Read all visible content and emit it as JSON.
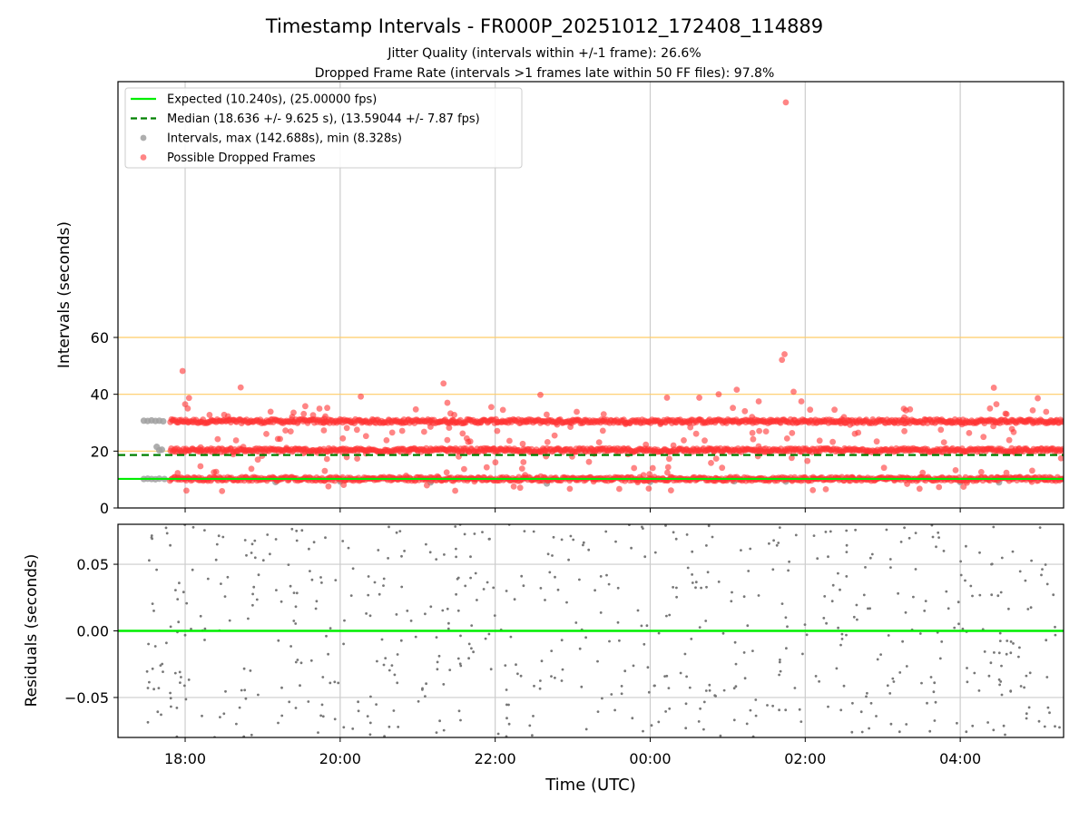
{
  "chart_data": [
    {
      "type": "scatter",
      "title": "Timestamp Intervals - FR000P_20251012_172408_114889",
      "subtitle_lines": [
        "Jitter Quality (intervals within +/-1 frame): 26.6%",
        "Dropped Frame Rate (intervals >1 frames late within 50 FF files): 97.8%"
      ],
      "xlabel": "",
      "ylabel": "Intervals (seconds)",
      "x_range": [
        "17:08",
        "05:20"
      ],
      "ylim": [
        0,
        150
      ],
      "yticks": [
        0,
        20,
        40,
        60
      ],
      "grid": "vertical at x ticks",
      "legend_placement": "top-left",
      "legend": [
        {
          "label": "Expected (10.240s), (25.00000 fps)",
          "style": "solid line",
          "color": "#00ee00"
        },
        {
          "label": "Median (18.636 +/- 9.625 s), (13.59044 +/- 7.87 fps)",
          "style": "dashed line",
          "color": "#008000"
        },
        {
          "label": "Intervals, max (142.688s), min (8.328s)",
          "style": "marker",
          "color": "#a0a0a0"
        },
        {
          "label": "Possible Dropped Frames",
          "style": "marker",
          "color": "#ff3333"
        }
      ],
      "reference_lines": [
        {
          "name": "expected",
          "y": 10.24,
          "color": "#00ee00",
          "style": "solid"
        },
        {
          "name": "median",
          "y": 18.636,
          "color": "#008000",
          "style": "dashed"
        },
        {
          "name": "threshold",
          "y": 20,
          "color": "#ffcc66",
          "style": "solid"
        },
        {
          "name": "threshold",
          "y": 40,
          "color": "#ffcc66",
          "style": "solid"
        },
        {
          "name": "threshold",
          "y": 60,
          "color": "#ffcc66",
          "style": "solid"
        }
      ],
      "series": [
        {
          "kind": "intervals",
          "color": "#a0a0a0",
          "points": [
            [
              "17:28",
              30.7
            ],
            [
              "17:31",
              30.6
            ],
            [
              "17:34",
              30.8
            ],
            [
              "17:37",
              30.6
            ],
            [
              "17:40",
              30.7
            ],
            [
              "17:43",
              30.5
            ],
            [
              "17:28",
              10.2
            ],
            [
              "17:31",
              10.3
            ],
            [
              "17:34",
              10.2
            ],
            [
              "17:37",
              10.1
            ],
            [
              "17:40",
              10.3
            ],
            [
              "17:44",
              10.2
            ],
            [
              "17:38",
              21.5
            ],
            [
              "17:40",
              20.3
            ],
            [
              "17:42",
              20.5
            ],
            [
              "19:10",
              9.1
            ],
            [
              "20:00",
              9.3
            ],
            [
              "21:10",
              9.0
            ],
            [
              "22:40",
              8.6
            ],
            [
              "00:00",
              9.2
            ],
            [
              "01:05",
              9.4
            ],
            [
              "01:45",
              9.3
            ],
            [
              "04:00",
              9.1
            ],
            [
              "04:30",
              9.0
            ]
          ]
        },
        {
          "kind": "possible_dropped_frames",
          "color": "#ff3333",
          "bands": [
            {
              "y": 30.5,
              "spread": 0.7,
              "from": "17:48",
              "to": "05:20"
            },
            {
              "y": 20.3,
              "spread": 0.7,
              "from": "17:48",
              "to": "05:20"
            },
            {
              "y": 10.2,
              "spread": 0.7,
              "from": "17:48",
              "to": "05:20"
            }
          ],
          "outliers": [
            [
              "17:58",
              48.2
            ],
            [
              "18:00",
              36.5
            ],
            [
              "18:03",
              38.7
            ],
            [
              "18:02",
              35.0
            ],
            [
              "18:43",
              42.4
            ],
            [
              "18:45",
              21.5
            ],
            [
              "19:33",
              35.8
            ],
            [
              "19:50",
              35.2
            ],
            [
              "20:13",
              27.5
            ],
            [
              "20:16",
              39.2
            ],
            [
              "20:20",
              25.3
            ],
            [
              "20:48",
              30.5
            ],
            [
              "21:05",
              26.8
            ],
            [
              "21:20",
              43.8
            ],
            [
              "21:23",
              37.0
            ],
            [
              "21:38",
              24.5
            ],
            [
              "21:57",
              35.5
            ],
            [
              "22:06",
              34.5
            ],
            [
              "22:24",
              30.2
            ],
            [
              "22:35",
              39.8
            ],
            [
              "22:46",
              25.5
            ],
            [
              "23:00",
              31.0
            ],
            [
              "23:24",
              33.0
            ],
            [
              "23:41",
              29.5
            ],
            [
              "00:13",
              38.8
            ],
            [
              "00:18",
              22.0
            ],
            [
              "00:26",
              23.8
            ],
            [
              "00:38",
              38.8
            ],
            [
              "00:53",
              40.0
            ],
            [
              "01:04",
              35.2
            ],
            [
              "01:07",
              41.6
            ],
            [
              "01:24",
              37.5
            ],
            [
              "01:33",
              30.2
            ],
            [
              "01:42",
              52.1
            ],
            [
              "01:44",
              54.1
            ],
            [
              "01:45",
              142.7
            ],
            [
              "01:51",
              40.9
            ],
            [
              "01:57",
              37.5
            ],
            [
              "02:30",
              32.0
            ],
            [
              "02:41",
              26.5
            ],
            [
              "03:18",
              34.3
            ],
            [
              "03:45",
              27.5
            ],
            [
              "04:18",
              25.0
            ],
            [
              "04:23",
              35.0
            ],
            [
              "04:26",
              42.3
            ],
            [
              "04:28",
              36.5
            ],
            [
              "04:35",
              33.2
            ],
            [
              "04:40",
              27.8
            ],
            [
              "04:52",
              30.8
            ],
            [
              "05:00",
              38.6
            ],
            [
              "05:12",
              30.0
            ]
          ]
        }
      ]
    },
    {
      "type": "scatter",
      "xlabel": "Time (UTC)",
      "ylabel": "Residuals (seconds)",
      "x_range": [
        "17:08",
        "05:20"
      ],
      "xticks": [
        "18:00",
        "20:00",
        "22:00",
        "00:00",
        "02:00",
        "04:00"
      ],
      "ylim": [
        -0.08,
        0.08
      ],
      "yticks": [
        -0.05,
        0.0,
        0.05
      ],
      "ytick_labels": [
        "−0.05",
        "0.00",
        "0.05"
      ],
      "grid": "on",
      "reference_lines": [
        {
          "name": "zero",
          "y": 0.0,
          "color": "#00ee00",
          "style": "solid"
        }
      ],
      "series": [
        {
          "kind": "residuals",
          "color": "#777777",
          "from": "17:28",
          "to": "05:20",
          "count": 620,
          "range": [
            -0.08,
            0.08
          ]
        }
      ]
    }
  ]
}
